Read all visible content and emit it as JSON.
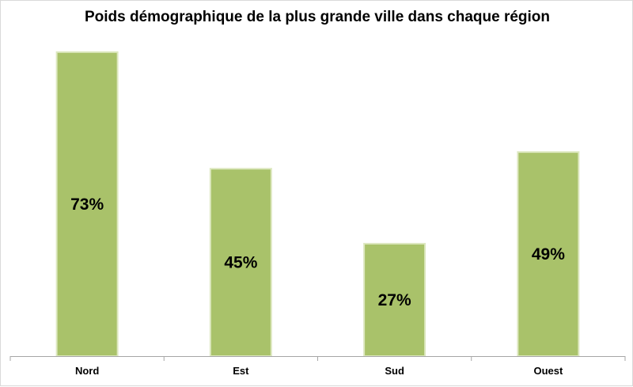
{
  "chart_data": {
    "type": "bar",
    "title": "Poids démographique de la plus grande ville dans chaque région",
    "categories": [
      "Nord",
      "Est",
      "Sud",
      "Ouest"
    ],
    "values": [
      73,
      45,
      27,
      49
    ],
    "data_labels": [
      "73%",
      "45%",
      "27%",
      "49%"
    ],
    "unit": "%",
    "ylim": [
      0,
      80
    ],
    "grid": false,
    "legend": "none",
    "bar_color": "#a9c26a",
    "bar_edge_color": "#dde8c0"
  }
}
